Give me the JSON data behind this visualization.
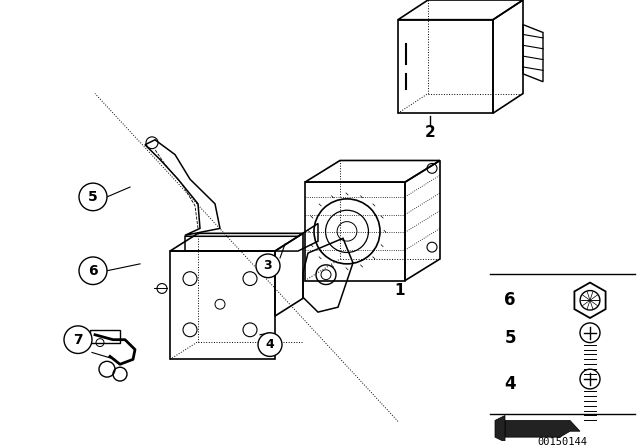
{
  "background_color": "#ffffff",
  "line_color": "#000000",
  "part_number": "00150144",
  "fig_w": 6.4,
  "fig_h": 4.48,
  "dpi": 100
}
